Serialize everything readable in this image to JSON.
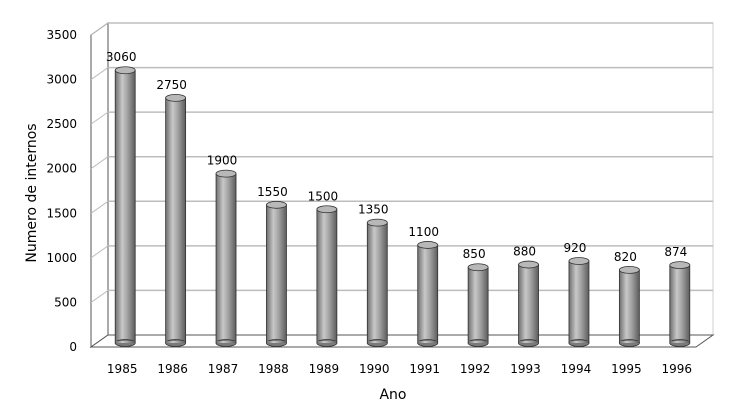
{
  "chart_data": {
    "type": "bar",
    "categories": [
      "1985",
      "1986",
      "1987",
      "1988",
      "1989",
      "1990",
      "1991",
      "1992",
      "1993",
      "1994",
      "1995",
      "1996"
    ],
    "values": [
      3060,
      2750,
      1900,
      1550,
      1500,
      1350,
      1100,
      850,
      880,
      920,
      820,
      874
    ],
    "data_labels": [
      "3060",
      "2750",
      "1900",
      "1550",
      "1500",
      "1350",
      "1100",
      "850",
      "880",
      "920",
      "820",
      "874"
    ],
    "xlabel": "Ano",
    "ylabel": "Numero de internos",
    "ylim": [
      0,
      3500
    ],
    "yticks": [
      "0",
      "500",
      "1000",
      "1500",
      "2000",
      "2500",
      "3000",
      "3500"
    ],
    "grid": true,
    "bar_style": "3d-cylinder",
    "colors": {
      "bar": "#a9a9a9",
      "bar_dark": "#5a5a5a",
      "grid": "#bdbdbd",
      "frame": "#555555"
    }
  }
}
